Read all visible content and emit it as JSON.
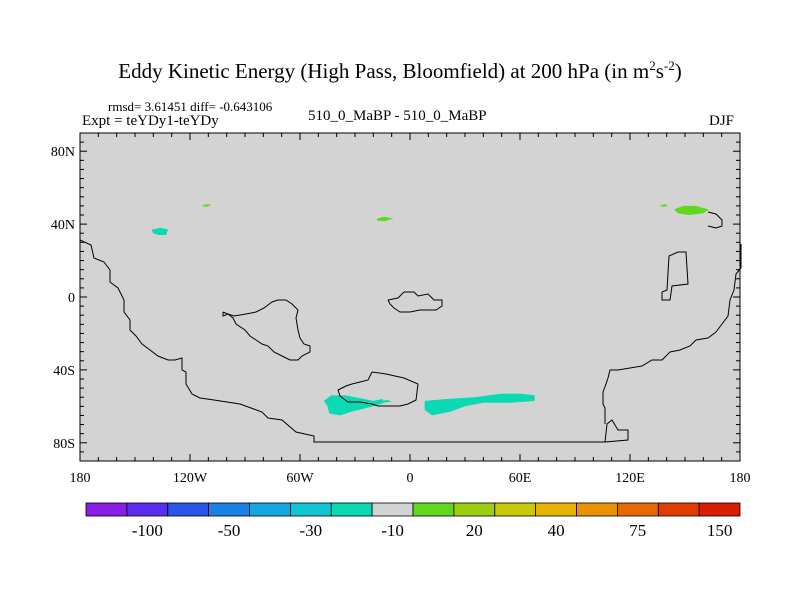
{
  "title": {
    "main": "Eddy Kinetic Energy (High Pass, Bloomfield) at 200 hPa (in m",
    "sup1": "2",
    "mid": "s",
    "sup2": "-2",
    "end": ")"
  },
  "stats": "rmsd= 3.61451 diff= -0.643106",
  "expt": "Expt = teYDy1-teYDy",
  "center_label": "510_0_MaBP - 510_0_MaBP",
  "season": "DJF",
  "colors": {
    "land_fill": "#d3d3d3",
    "coast": "#000000"
  },
  "chart_data": {
    "type": "heatmap",
    "projection": "cylindrical-equidistant",
    "xlim": [
      -180,
      180
    ],
    "ylim": [
      -90,
      90
    ],
    "x_ticks": [
      {
        "value": -180,
        "label": "180"
      },
      {
        "value": -120,
        "label": "120W"
      },
      {
        "value": -60,
        "label": "60W"
      },
      {
        "value": 0,
        "label": "0"
      },
      {
        "value": 60,
        "label": "60E"
      },
      {
        "value": 120,
        "label": "120E"
      },
      {
        "value": 180,
        "label": "180"
      }
    ],
    "y_ticks": [
      {
        "value": 80,
        "label": "80N"
      },
      {
        "value": 40,
        "label": "40N"
      },
      {
        "value": 0,
        "label": "0"
      },
      {
        "value": -40,
        "label": "40S"
      },
      {
        "value": -80,
        "label": "80S"
      }
    ],
    "colorbar": {
      "colors": [
        "#8a1ee6",
        "#5a2ef0",
        "#2b55e8",
        "#1a82e6",
        "#14a6e0",
        "#10c4d2",
        "#0ad9b4",
        "#d3d3d3",
        "#5fd81e",
        "#9ccf10",
        "#c9c80a",
        "#e5b400",
        "#ec9200",
        "#e66a00",
        "#e03e00",
        "#dc1c00"
      ],
      "labels": [
        "-100",
        "-50",
        "-30",
        "-10",
        "20",
        "40",
        "75",
        "150"
      ],
      "label_after_boundaries": [
        2,
        4,
        6,
        8,
        10,
        12,
        14,
        16
      ]
    },
    "regions": [
      {
        "category": "20",
        "color": "#5fd81e",
        "points": [
          [
            -114,
            50
          ],
          [
            -111,
            51
          ],
          [
            -108,
            50.5
          ],
          [
            -111,
            49.5
          ]
        ]
      },
      {
        "category": "20",
        "color": "#5fd81e",
        "points": [
          [
            -18,
            43
          ],
          [
            -14,
            44
          ],
          [
            -9,
            43
          ],
          [
            -14,
            41.5
          ],
          [
            -18,
            42
          ]
        ]
      },
      {
        "category": "20",
        "color": "#5fd81e",
        "points": [
          [
            136,
            50
          ],
          [
            139,
            51
          ],
          [
            141,
            50
          ],
          [
            138,
            49.5
          ]
        ]
      },
      {
        "category": "20",
        "color": "#5fd81e",
        "points": [
          [
            144,
            48
          ],
          [
            149,
            50
          ],
          [
            156,
            50
          ],
          [
            163,
            48
          ],
          [
            160,
            46
          ],
          [
            152,
            45
          ],
          [
            146,
            46
          ]
        ]
      },
      {
        "category": "-10",
        "color": "#0ad9b4",
        "points": [
          [
            -141,
            37
          ],
          [
            -136,
            38
          ],
          [
            -132,
            37
          ],
          [
            -133,
            34
          ],
          [
            -137,
            34
          ],
          [
            -140,
            35
          ]
        ]
      },
      {
        "category": "-10",
        "color": "#0ad9b4",
        "points": [
          [
            -47,
            -57
          ],
          [
            -43,
            -54
          ],
          [
            -35,
            -54
          ],
          [
            -25,
            -56
          ],
          [
            -20,
            -57
          ],
          [
            -15,
            -56
          ],
          [
            -14,
            -58
          ],
          [
            -20,
            -60
          ],
          [
            -32,
            -63
          ],
          [
            -38,
            -65
          ],
          [
            -44,
            -64
          ],
          [
            -45,
            -60
          ]
        ]
      },
      {
        "category": "-10",
        "color": "#0ad9b4",
        "points": [
          [
            -16,
            -57
          ],
          [
            -12,
            -56.5
          ],
          [
            -10,
            -57.5
          ],
          [
            -15,
            -58
          ]
        ]
      },
      {
        "category": "-10",
        "color": "#0ad9b4",
        "points": [
          [
            8,
            -57
          ],
          [
            20,
            -56
          ],
          [
            35,
            -55
          ],
          [
            50,
            -53
          ],
          [
            60,
            -53
          ],
          [
            68,
            -54
          ],
          [
            68,
            -57
          ],
          [
            55,
            -58
          ],
          [
            40,
            -58
          ],
          [
            30,
            -60
          ],
          [
            22,
            -63
          ],
          [
            12,
            -65
          ],
          [
            8,
            -62
          ]
        ]
      }
    ]
  }
}
